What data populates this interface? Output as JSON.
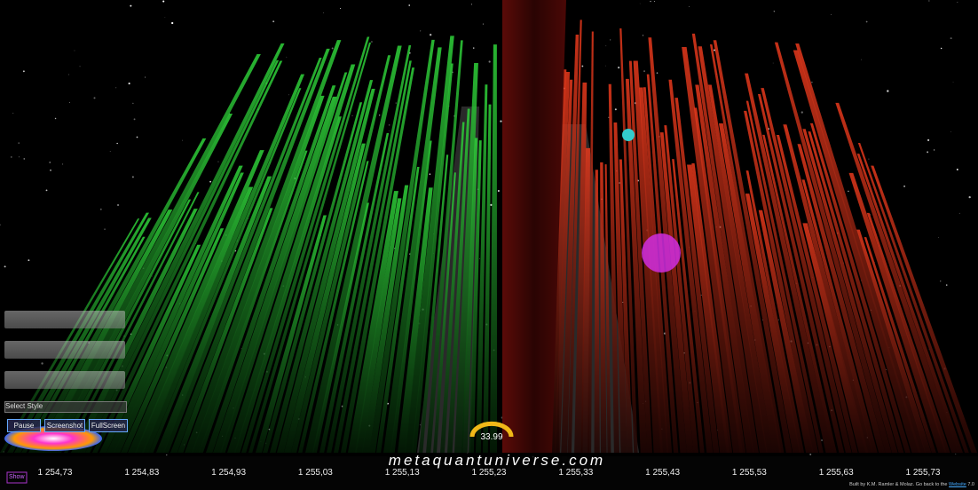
{
  "app": {
    "logo": "metaquantuniverse.com",
    "gauge_value": "33.99",
    "controls": {
      "style_select": "Select Style",
      "buttons": [
        "Pause",
        "Screenshot",
        "FullScreen"
      ]
    },
    "corner_button": "Show",
    "price_axis": [
      "1 254,73",
      "1 254,83",
      "1 254,93",
      "1 255,03",
      "1 255,13",
      "1 255,23",
      "1 255,33",
      "1 255,43",
      "1 255,53",
      "1 255,63",
      "1 255,73"
    ],
    "footer": {
      "text": "Built by K.M. Ramler & Molaz. Go back to the",
      "link": "Website",
      "version": "7.0"
    }
  }
}
